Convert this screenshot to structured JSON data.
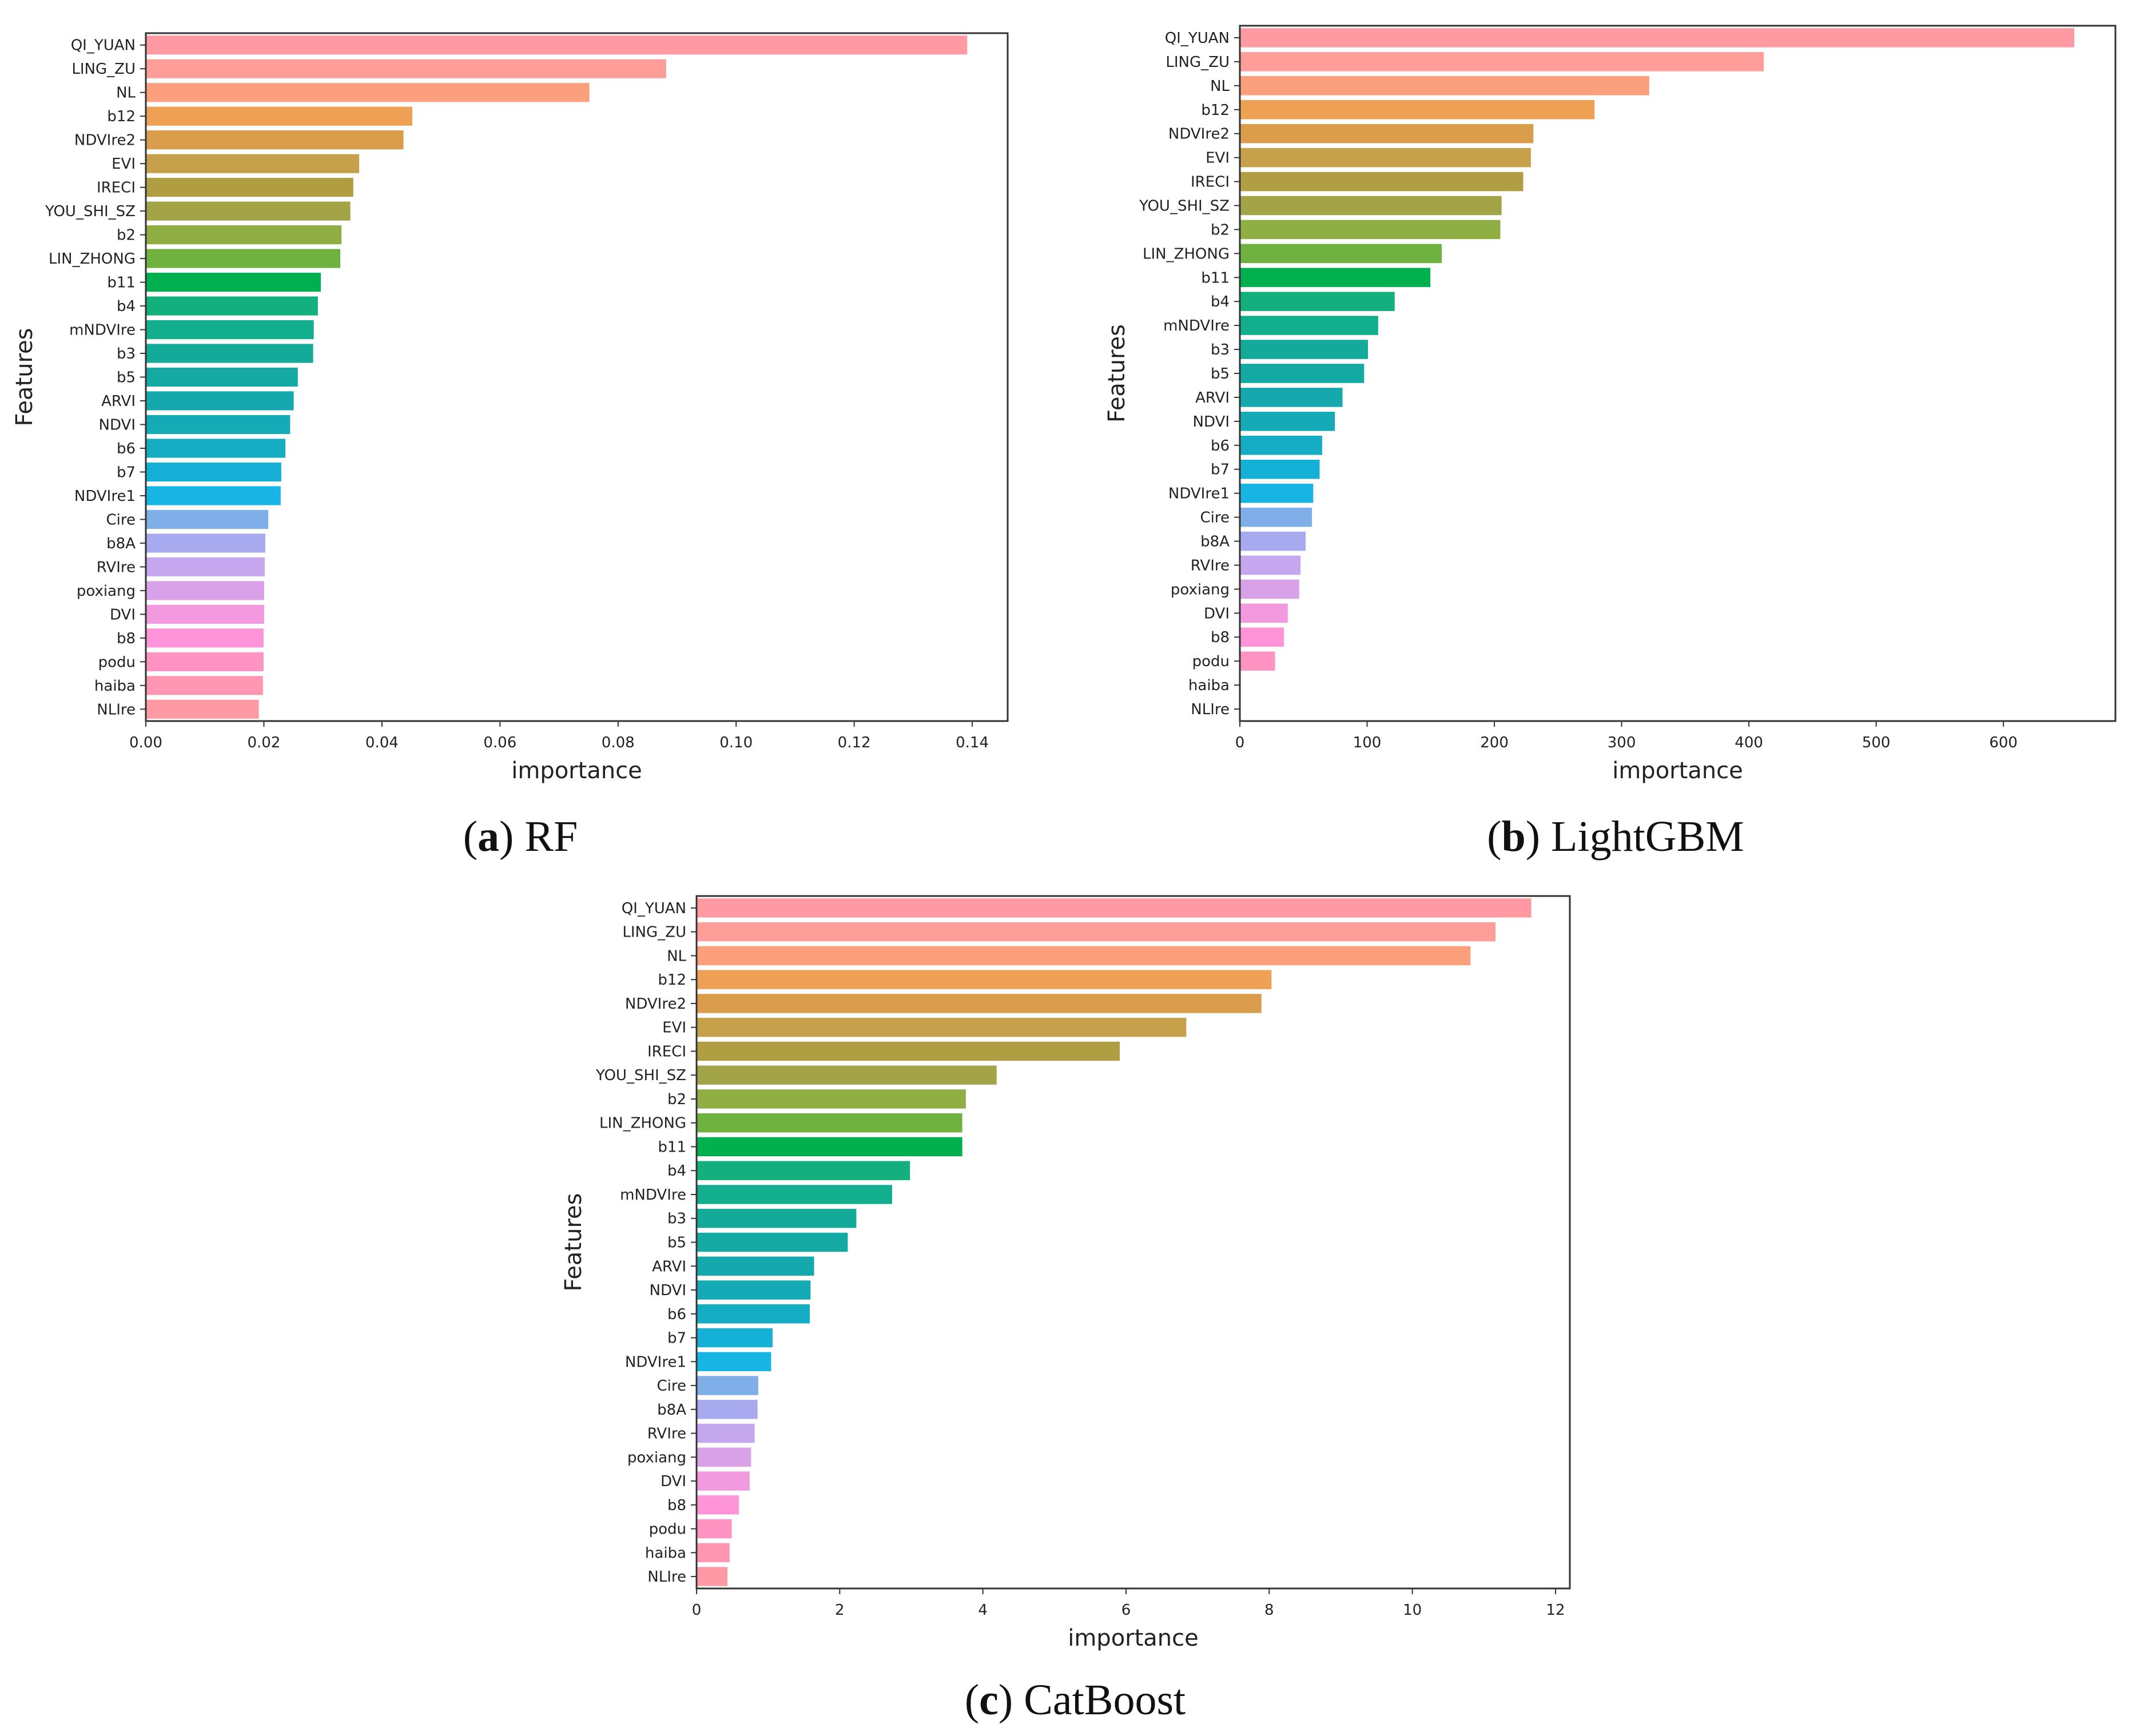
{
  "chart_data": [
    {
      "id": "rf",
      "type": "bar",
      "orientation": "horizontal",
      "caption_letter": "a",
      "caption_text": "RF",
      "xlabel": "importance",
      "ylabel": "Features",
      "xlim": [
        0,
        0.146
      ],
      "xticks": [
        0.0,
        0.02,
        0.04,
        0.06,
        0.08,
        0.1,
        0.12,
        0.14
      ],
      "xtick_labels": [
        "0.00",
        "0.02",
        "0.04",
        "0.06",
        "0.08",
        "0.10",
        "0.12",
        "0.14"
      ],
      "categories": [
        "QI_YUAN",
        "LING_ZU",
        "NL",
        "b12",
        "NDVIre2",
        "EVI",
        "IRECI",
        "YOU_SHI_SZ",
        "b2",
        "LIN_ZHONG",
        "b11",
        "b4",
        "mNDVIre",
        "b3",
        "b5",
        "ARVI",
        "NDVI",
        "b6",
        "b7",
        "NDVIre1",
        "Cire",
        "b8A",
        "RVIre",
        "poxiang",
        "DVI",
        "b8",
        "podu",
        "haiba",
        "NLIre"
      ],
      "values": [
        0.139,
        0.088,
        0.075,
        0.045,
        0.0435,
        0.036,
        0.035,
        0.0345,
        0.033,
        0.0328,
        0.0295,
        0.029,
        0.0283,
        0.0282,
        0.0256,
        0.0249,
        0.0243,
        0.0235,
        0.0228,
        0.0227,
        0.0206,
        0.0201,
        0.02,
        0.0199,
        0.0199,
        0.0198,
        0.0198,
        0.0197,
        0.019
      ]
    },
    {
      "id": "lgbm",
      "type": "bar",
      "orientation": "horizontal",
      "caption_letter": "b",
      "caption_text": "LightGBM",
      "xlabel": "importance",
      "ylabel": "Features",
      "xlim": [
        0,
        688
      ],
      "xticks": [
        0,
        100,
        200,
        300,
        400,
        500,
        600
      ],
      "xtick_labels": [
        "0",
        "100",
        "200",
        "300",
        "400",
        "500",
        "600"
      ],
      "categories": [
        "QI_YUAN",
        "LING_ZU",
        "NL",
        "b12",
        "NDVIre2",
        "EVI",
        "IRECI",
        "YOU_SHI_SZ",
        "b2",
        "LIN_ZHONG",
        "b11",
        "b4",
        "mNDVIre",
        "b3",
        "b5",
        "ARVI",
        "NDVI",
        "b6",
        "b7",
        "NDVIre1",
        "Cire",
        "b8A",
        "RVIre",
        "poxiang",
        "DVI",
        "b8",
        "podu",
        "haiba",
        "NLIre"
      ],
      "values": [
        655,
        411,
        321,
        278,
        230,
        228,
        222,
        205,
        204,
        158,
        149,
        121,
        108,
        100,
        97,
        80,
        74,
        64,
        62,
        57,
        56,
        51,
        47,
        46,
        37,
        34,
        27,
        0,
        0
      ]
    },
    {
      "id": "catboost",
      "type": "bar",
      "orientation": "horizontal",
      "caption_letter": "c",
      "caption_text": "CatBoost",
      "xlabel": "importance",
      "ylabel": "Features",
      "xlim": [
        0,
        12.2
      ],
      "xticks": [
        0,
        2,
        4,
        6,
        8,
        10,
        12
      ],
      "xtick_labels": [
        "0",
        "2",
        "4",
        "6",
        "8",
        "10",
        "12"
      ],
      "categories": [
        "QI_YUAN",
        "LING_ZU",
        "NL",
        "b12",
        "NDVIre2",
        "EVI",
        "IRECI",
        "YOU_SHI_SZ",
        "b2",
        "LIN_ZHONG",
        "b11",
        "b4",
        "mNDVIre",
        "b3",
        "b5",
        "ARVI",
        "NDVI",
        "b6",
        "b7",
        "NDVIre1",
        "Cire",
        "b8A",
        "RVIre",
        "poxiang",
        "DVI",
        "b8",
        "podu",
        "haiba",
        "NLIre"
      ],
      "values": [
        11.65,
        11.15,
        10.8,
        8.02,
        7.88,
        6.83,
        5.9,
        4.18,
        3.75,
        3.7,
        3.7,
        2.97,
        2.72,
        2.22,
        2.1,
        1.63,
        1.58,
        1.57,
        1.05,
        1.03,
        0.85,
        0.84,
        0.8,
        0.75,
        0.73,
        0.58,
        0.48,
        0.45,
        0.42
      ]
    }
  ],
  "colors": [
    "#ff9aa2",
    "#ff9e98",
    "#fc9f7c",
    "#eea055",
    "#d99d4c",
    "#c6a04a",
    "#b19d42",
    "#a3a448",
    "#8fae44",
    "#6fb240",
    "#00b04f",
    "#13b07e",
    "#13ae8e",
    "#14aa99",
    "#14a9a3",
    "#15a8ac",
    "#14aab6",
    "#14adc4",
    "#15b0d5",
    "#17b5e4",
    "#7faee8",
    "#a7aaef",
    "#c4a7ef",
    "#d9a2e8",
    "#f399e0",
    "#ff94d8",
    "#ff94c3",
    "#ff96b2",
    "#ff9aa4"
  ]
}
